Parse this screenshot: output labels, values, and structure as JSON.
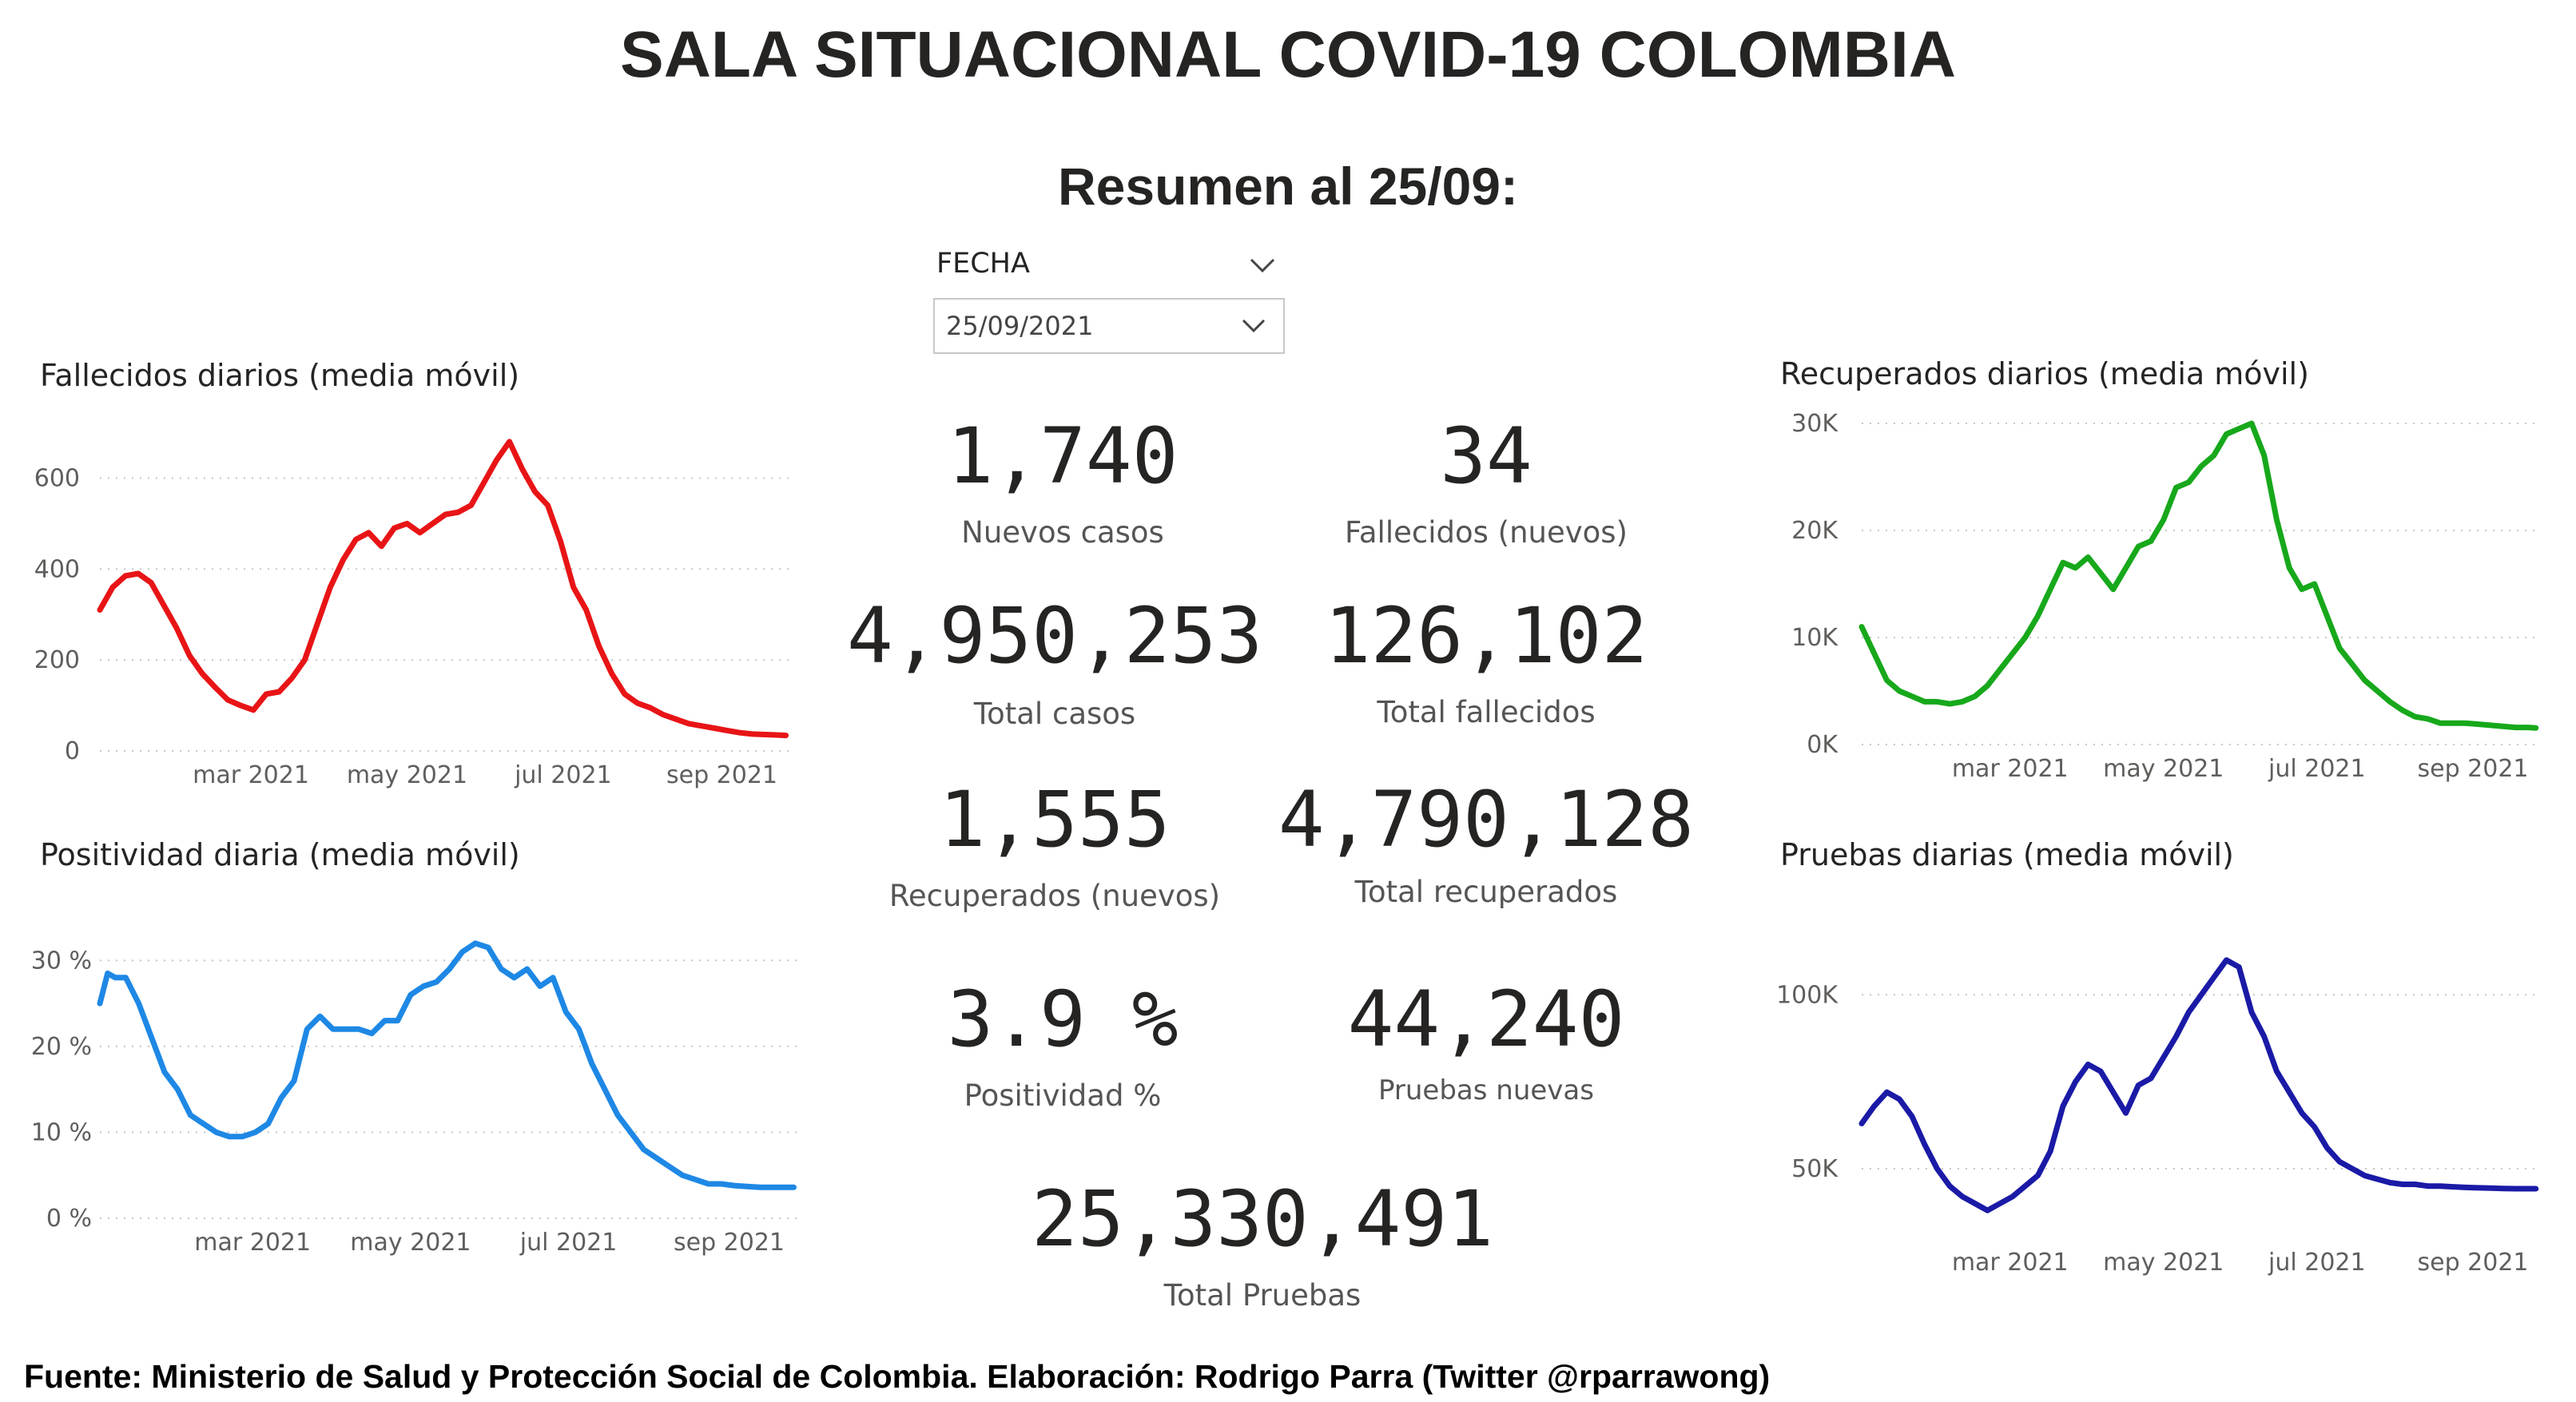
{
  "header": {
    "title": "SALA SITUACIONAL COVID-19 COLOMBIA",
    "subtitle": "Resumen al 25/09:"
  },
  "slicer": {
    "label": "FECHA",
    "value": "25/09/2021",
    "icon": "chevron-down-icon"
  },
  "kpis": {
    "nuevos_casos": {
      "value": "1,740",
      "label": "Nuevos casos"
    },
    "fallecidos_nuevos": {
      "value": "34",
      "label": "Fallecidos (nuevos)"
    },
    "total_casos": {
      "value": "4,950,253",
      "label": "Total casos"
    },
    "total_fallecidos": {
      "value": "126,102",
      "label": "Total fallecidos"
    },
    "recuperados_nuevos": {
      "value": "1,555",
      "label": "Recuperados (nuevos)"
    },
    "total_recuperados": {
      "value": "4,790,128",
      "label": "Total recuperados"
    },
    "positividad": {
      "value": "3.9 %",
      "label": "Positividad %"
    },
    "pruebas_nuevas": {
      "value": "44,240",
      "label": "Pruebas nuevas"
    },
    "total_pruebas": {
      "value": "25,330,491",
      "label": "Total Pruebas"
    }
  },
  "footer": {
    "text": "Fuente: Ministerio de Salud y Protección Social de Colombia. Elaboración: Rodrigo Parra (Twitter @rparrawong)"
  },
  "chart_data": [
    {
      "id": "fallecidos",
      "type": "line",
      "title": "Fallecidos diarios (media móvil)",
      "color": "#e81416",
      "x_ticks": [
        "mar 2021",
        "may 2021",
        "jul 2021",
        "sep 2021"
      ],
      "x_tick_days": [
        59,
        120,
        181,
        243
      ],
      "y_ticks": [
        0,
        200,
        400,
        600
      ],
      "y_tick_labels": [
        "0",
        "200",
        "400",
        "600"
      ],
      "ylim": [
        0,
        650
      ],
      "grid": true,
      "series": [
        {
          "x": [
            0,
            5,
            10,
            15,
            20,
            25,
            30,
            35,
            40,
            45,
            50,
            55,
            60,
            65,
            70,
            75,
            80,
            85,
            90,
            95,
            100,
            105,
            110,
            115,
            120,
            125,
            130,
            135,
            140,
            145,
            150,
            155,
            160,
            165,
            170,
            175,
            180,
            185,
            190,
            195,
            200,
            205,
            210,
            215,
            220,
            225,
            230,
            235,
            240,
            245,
            250,
            255,
            260,
            265,
            268
          ],
          "y": [
            310,
            360,
            385,
            390,
            370,
            320,
            270,
            210,
            170,
            140,
            112,
            100,
            90,
            125,
            130,
            160,
            200,
            280,
            360,
            420,
            465,
            480,
            450,
            490,
            500,
            480,
            500,
            520,
            525,
            540,
            590,
            640,
            680,
            620,
            570,
            540,
            460,
            360,
            310,
            230,
            170,
            125,
            105,
            95,
            80,
            70,
            60,
            55,
            50,
            45,
            40,
            37,
            36,
            35,
            34
          ]
        }
      ]
    },
    {
      "id": "positividad",
      "type": "line",
      "title": "Positividad diaria (media móvil)",
      "color": "#1e88e5",
      "x_ticks": [
        "mar 2021",
        "may 2021",
        "jul 2021",
        "sep 2021"
      ],
      "x_tick_days": [
        59,
        120,
        181,
        243
      ],
      "y_ticks": [
        0,
        10,
        20,
        30
      ],
      "y_tick_labels": [
        "0 %",
        "10 %",
        "20 %",
        "30 %"
      ],
      "ylim": [
        0,
        33
      ],
      "grid": true,
      "series": [
        {
          "x": [
            0,
            3,
            6,
            10,
            15,
            20,
            25,
            30,
            35,
            40,
            45,
            50,
            55,
            60,
            65,
            70,
            75,
            80,
            85,
            90,
            95,
            100,
            105,
            110,
            115,
            120,
            125,
            130,
            135,
            140,
            145,
            150,
            155,
            160,
            165,
            170,
            175,
            180,
            185,
            190,
            195,
            200,
            205,
            210,
            215,
            220,
            225,
            230,
            235,
            240,
            245,
            250,
            255,
            260,
            265,
            268
          ],
          "y": [
            25,
            28.5,
            28,
            28,
            25,
            21,
            17,
            15,
            12,
            11,
            10,
            9.5,
            9.5,
            10,
            11,
            14,
            16,
            22,
            23.5,
            22,
            22,
            22,
            21.5,
            23,
            23,
            26,
            27,
            27.5,
            29,
            31,
            32,
            31.5,
            29,
            28,
            29,
            27,
            28,
            24,
            22,
            18,
            15,
            12,
            10,
            8,
            7,
            6,
            5,
            4.5,
            4,
            4,
            3.8,
            3.7,
            3.6,
            3.6,
            3.6,
            3.6
          ]
        }
      ]
    },
    {
      "id": "recuperados",
      "type": "line",
      "title": "Recuperados diarios (media móvil)",
      "color": "#17a81b",
      "x_ticks": [
        "mar 2021",
        "may 2021",
        "jul 2021",
        "sep 2021"
      ],
      "x_tick_days": [
        59,
        120,
        181,
        243
      ],
      "y_ticks": [
        0,
        10000,
        20000,
        30000
      ],
      "y_tick_labels": [
        "0K",
        "10K",
        "20K",
        "30K"
      ],
      "ylim": [
        0,
        30000
      ],
      "grid": true,
      "series": [
        {
          "x": [
            0,
            5,
            10,
            15,
            20,
            25,
            30,
            35,
            40,
            45,
            50,
            55,
            60,
            65,
            70,
            75,
            80,
            85,
            90,
            95,
            100,
            105,
            110,
            115,
            120,
            125,
            130,
            135,
            140,
            145,
            150,
            155,
            160,
            165,
            170,
            175,
            180,
            185,
            190,
            195,
            200,
            205,
            210,
            215,
            220,
            225,
            230,
            235,
            240,
            245,
            250,
            255,
            260,
            265,
            268
          ],
          "y": [
            11000,
            8500,
            6000,
            5000,
            4500,
            4000,
            4000,
            3800,
            4000,
            4500,
            5500,
            7000,
            8500,
            10000,
            12000,
            14500,
            17000,
            16500,
            17500,
            16000,
            14500,
            16500,
            18500,
            19000,
            21000,
            24000,
            24500,
            26000,
            27000,
            29000,
            29500,
            30000,
            27000,
            21000,
            16500,
            14500,
            15000,
            12000,
            9000,
            7500,
            6000,
            5000,
            4000,
            3200,
            2600,
            2400,
            2000,
            2000,
            2000,
            1900,
            1800,
            1700,
            1600,
            1600,
            1555
          ]
        }
      ]
    },
    {
      "id": "pruebas",
      "type": "line",
      "title": "Pruebas diarias (media móvil)",
      "color": "#1a1aa6",
      "x_ticks": [
        "mar 2021",
        "may 2021",
        "jul 2021",
        "sep 2021"
      ],
      "x_tick_days": [
        59,
        120,
        181,
        243
      ],
      "y_ticks": [
        50000,
        100000
      ],
      "y_tick_labels": [
        "50K",
        "100K"
      ],
      "ylim": [
        30000,
        115000
      ],
      "grid": true,
      "series": [
        {
          "x": [
            0,
            5,
            10,
            15,
            20,
            25,
            30,
            35,
            40,
            45,
            50,
            55,
            60,
            65,
            70,
            75,
            80,
            85,
            90,
            95,
            100,
            105,
            110,
            115,
            120,
            125,
            130,
            135,
            140,
            145,
            150,
            155,
            160,
            165,
            170,
            175,
            180,
            185,
            190,
            195,
            200,
            205,
            210,
            215,
            220,
            225,
            230,
            235,
            240,
            245,
            250,
            255,
            260,
            265,
            268
          ],
          "y": [
            63000,
            68000,
            72000,
            70000,
            65000,
            57000,
            50000,
            45000,
            42000,
            40000,
            38000,
            40000,
            42000,
            45000,
            48000,
            55000,
            68000,
            75000,
            80000,
            78000,
            72000,
            66000,
            74000,
            76000,
            82000,
            88000,
            95000,
            100000,
            105000,
            110000,
            108000,
            95000,
            88000,
            78000,
            72000,
            66000,
            62000,
            56000,
            52000,
            50000,
            48000,
            47000,
            46000,
            45500,
            45500,
            45000,
            45000,
            44800,
            44600,
            44500,
            44400,
            44300,
            44250,
            44240,
            44240
          ]
        }
      ]
    }
  ]
}
